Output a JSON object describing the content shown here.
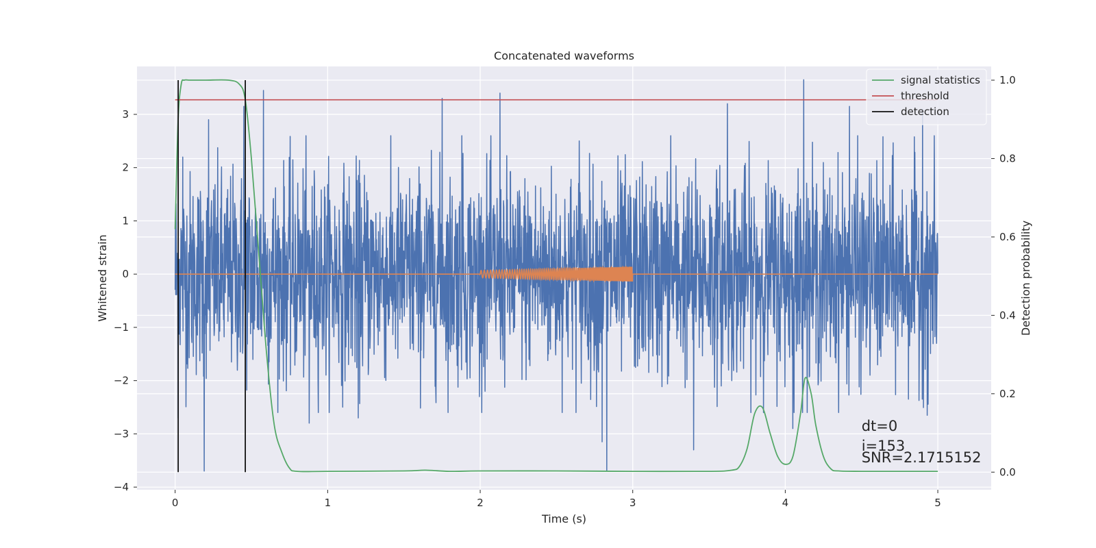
{
  "chart_data": {
    "type": "line",
    "title": "Concatenated waveforms",
    "xlabel": "Time (s)",
    "ylabel": "Whitened strain",
    "y2label": "Detection probability",
    "xlim": [
      -0.25,
      5.35
    ],
    "ylim": [
      -4.05,
      3.9
    ],
    "y2lim": [
      -0.045,
      1.035
    ],
    "xticks": [
      0,
      1,
      2,
      3,
      4,
      5
    ],
    "xtick_labels": [
      "0",
      "1",
      "2",
      "3",
      "4",
      "5"
    ],
    "yticks": [
      -4,
      -3,
      -2,
      -1,
      0,
      1,
      2,
      3
    ],
    "ytick_labels": [
      "−4",
      "−3",
      "−2",
      "−1",
      "0",
      "1",
      "2",
      "3"
    ],
    "y2ticks": [
      0.0,
      0.2,
      0.4,
      0.6,
      0.8,
      1.0
    ],
    "y2tick_labels": [
      "0.0",
      "0.2",
      "0.4",
      "0.6",
      "0.8",
      "1.0"
    ],
    "grid": true,
    "legend_position": "top-right",
    "series": [
      {
        "name": "",
        "kind": "noise",
        "axis": "left",
        "color": "#4c72b0",
        "x_range": [
          0,
          5
        ],
        "typical_range": [
          -1.2,
          1.2
        ],
        "spikes": [
          {
            "x": 0.02,
            "y": -2.7
          },
          {
            "x": 0.05,
            "y": 2.2
          },
          {
            "x": 0.19,
            "y": -3.7
          },
          {
            "x": 0.22,
            "y": 2.9
          },
          {
            "x": 0.45,
            "y": 3.15
          },
          {
            "x": 0.58,
            "y": 3.45
          },
          {
            "x": 0.88,
            "y": -2.8
          },
          {
            "x": 1.2,
            "y": -2.7
          },
          {
            "x": 1.75,
            "y": 3.3
          },
          {
            "x": 1.88,
            "y": 2.6
          },
          {
            "x": 2.13,
            "y": 3.4
          },
          {
            "x": 2.65,
            "y": 2.5
          },
          {
            "x": 2.8,
            "y": -3.15
          },
          {
            "x": 2.83,
            "y": -3.7
          },
          {
            "x": 3.25,
            "y": 2.6
          },
          {
            "x": 3.4,
            "y": -3.3
          },
          {
            "x": 3.62,
            "y": 3.2
          },
          {
            "x": 4.05,
            "y": -2.9
          },
          {
            "x": 4.12,
            "y": 3.65
          },
          {
            "x": 4.42,
            "y": 3.15
          },
          {
            "x": 4.9,
            "y": 3.1
          },
          {
            "x": 4.93,
            "y": -2.65
          }
        ]
      },
      {
        "name": "",
        "kind": "chirp",
        "axis": "left",
        "color": "#dd8452",
        "baseline": 0,
        "chirp_x_range": [
          2,
          3
        ],
        "amplitude_start": 0.07,
        "amplitude_end": 0.14
      },
      {
        "name": "signal statistics",
        "axis": "right",
        "color": "#55a868",
        "x": [
          0.0,
          0.02,
          0.04,
          0.06,
          0.1,
          0.2,
          0.35,
          0.42,
          0.46,
          0.5,
          0.55,
          0.6,
          0.65,
          0.7,
          0.75,
          0.8,
          1.0,
          1.5,
          1.64,
          1.8,
          2.0,
          2.5,
          3.0,
          3.5,
          3.65,
          3.7,
          3.75,
          3.8,
          3.85,
          3.9,
          3.95,
          4.0,
          4.05,
          4.1,
          4.13,
          4.17,
          4.2,
          4.25,
          4.3,
          4.35,
          4.5,
          5.0
        ],
        "y": [
          0.62,
          0.9,
          0.99,
          1.0,
          1.0,
          1.0,
          1.0,
          0.99,
          0.95,
          0.8,
          0.55,
          0.3,
          0.12,
          0.05,
          0.01,
          0.002,
          0.002,
          0.003,
          0.005,
          0.002,
          0.003,
          0.003,
          0.002,
          0.002,
          0.005,
          0.015,
          0.06,
          0.15,
          0.165,
          0.1,
          0.04,
          0.02,
          0.04,
          0.15,
          0.24,
          0.2,
          0.12,
          0.04,
          0.008,
          0.003,
          0.002,
          0.002
        ]
      },
      {
        "name": "threshold",
        "axis": "right",
        "color": "#c44e52",
        "x": [
          0,
          5
        ],
        "y": [
          0.95,
          0.95
        ]
      },
      {
        "name": "detection",
        "axis": "right",
        "color": "#111111",
        "x": [
          0.02,
          0.46
        ]
      }
    ],
    "annotations": [
      {
        "text": "dt=0",
        "x": 4.5,
        "y2": 0.105
      },
      {
        "text": "i=153",
        "x": 4.5,
        "y2": 0.055
      },
      {
        "text": "SNR=2.1715152",
        "x": 4.5,
        "y2": 0.025
      }
    ]
  }
}
